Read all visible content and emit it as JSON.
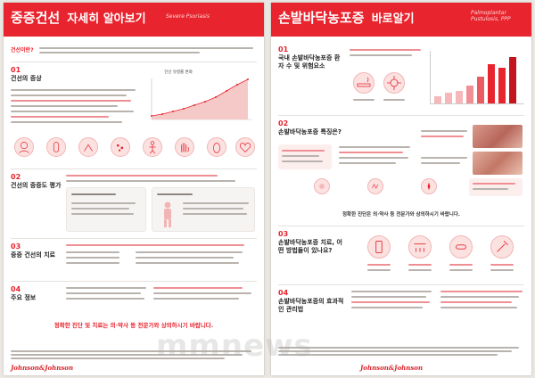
{
  "left": {
    "title_main": "중증건선",
    "title_sub": "자세히 알아보기",
    "title_en": "Severe Psoriasis",
    "intro_label": "건선이란?",
    "sections": [
      {
        "num": "01",
        "title": "건선의 증상"
      },
      {
        "num": "02",
        "title": "건선의 중증도 평가"
      },
      {
        "num": "03",
        "title": "중증 건선의 치료"
      },
      {
        "num": "04",
        "title": "주요 정보"
      }
    ],
    "chart_title": "건선 유병률 변화",
    "notice": "정확한 진단 및 치료는 의·약사 등 전문가와 상의하시기 바랍니다.",
    "brand": "Johnson&Johnson"
  },
  "right": {
    "title_main": "손발바닥농포증",
    "title_sub": "바로알기",
    "title_en": "Palmoplantar Pustulosis, PPP",
    "sections": [
      {
        "num": "01",
        "title": "국내 손발바닥농포증 환자 수 및 위험요소"
      },
      {
        "num": "02",
        "title": "손발바닥농포증 특징은?"
      },
      {
        "num": "03",
        "title": "손발바닥농포증 치료, 어떤 방법들이 있나요?"
      },
      {
        "num": "04",
        "title": "손발바닥농포증의 효과적인 관리법"
      }
    ],
    "mid_notice": "정확한 진단은 의·약사 등 전문가와 상의하시기 바랍니다.",
    "brand": "Johnson&Johnson"
  },
  "watermark": "mmnews",
  "colors": {
    "accent": "#e8242e",
    "accent_light": "#fbe2e1"
  }
}
